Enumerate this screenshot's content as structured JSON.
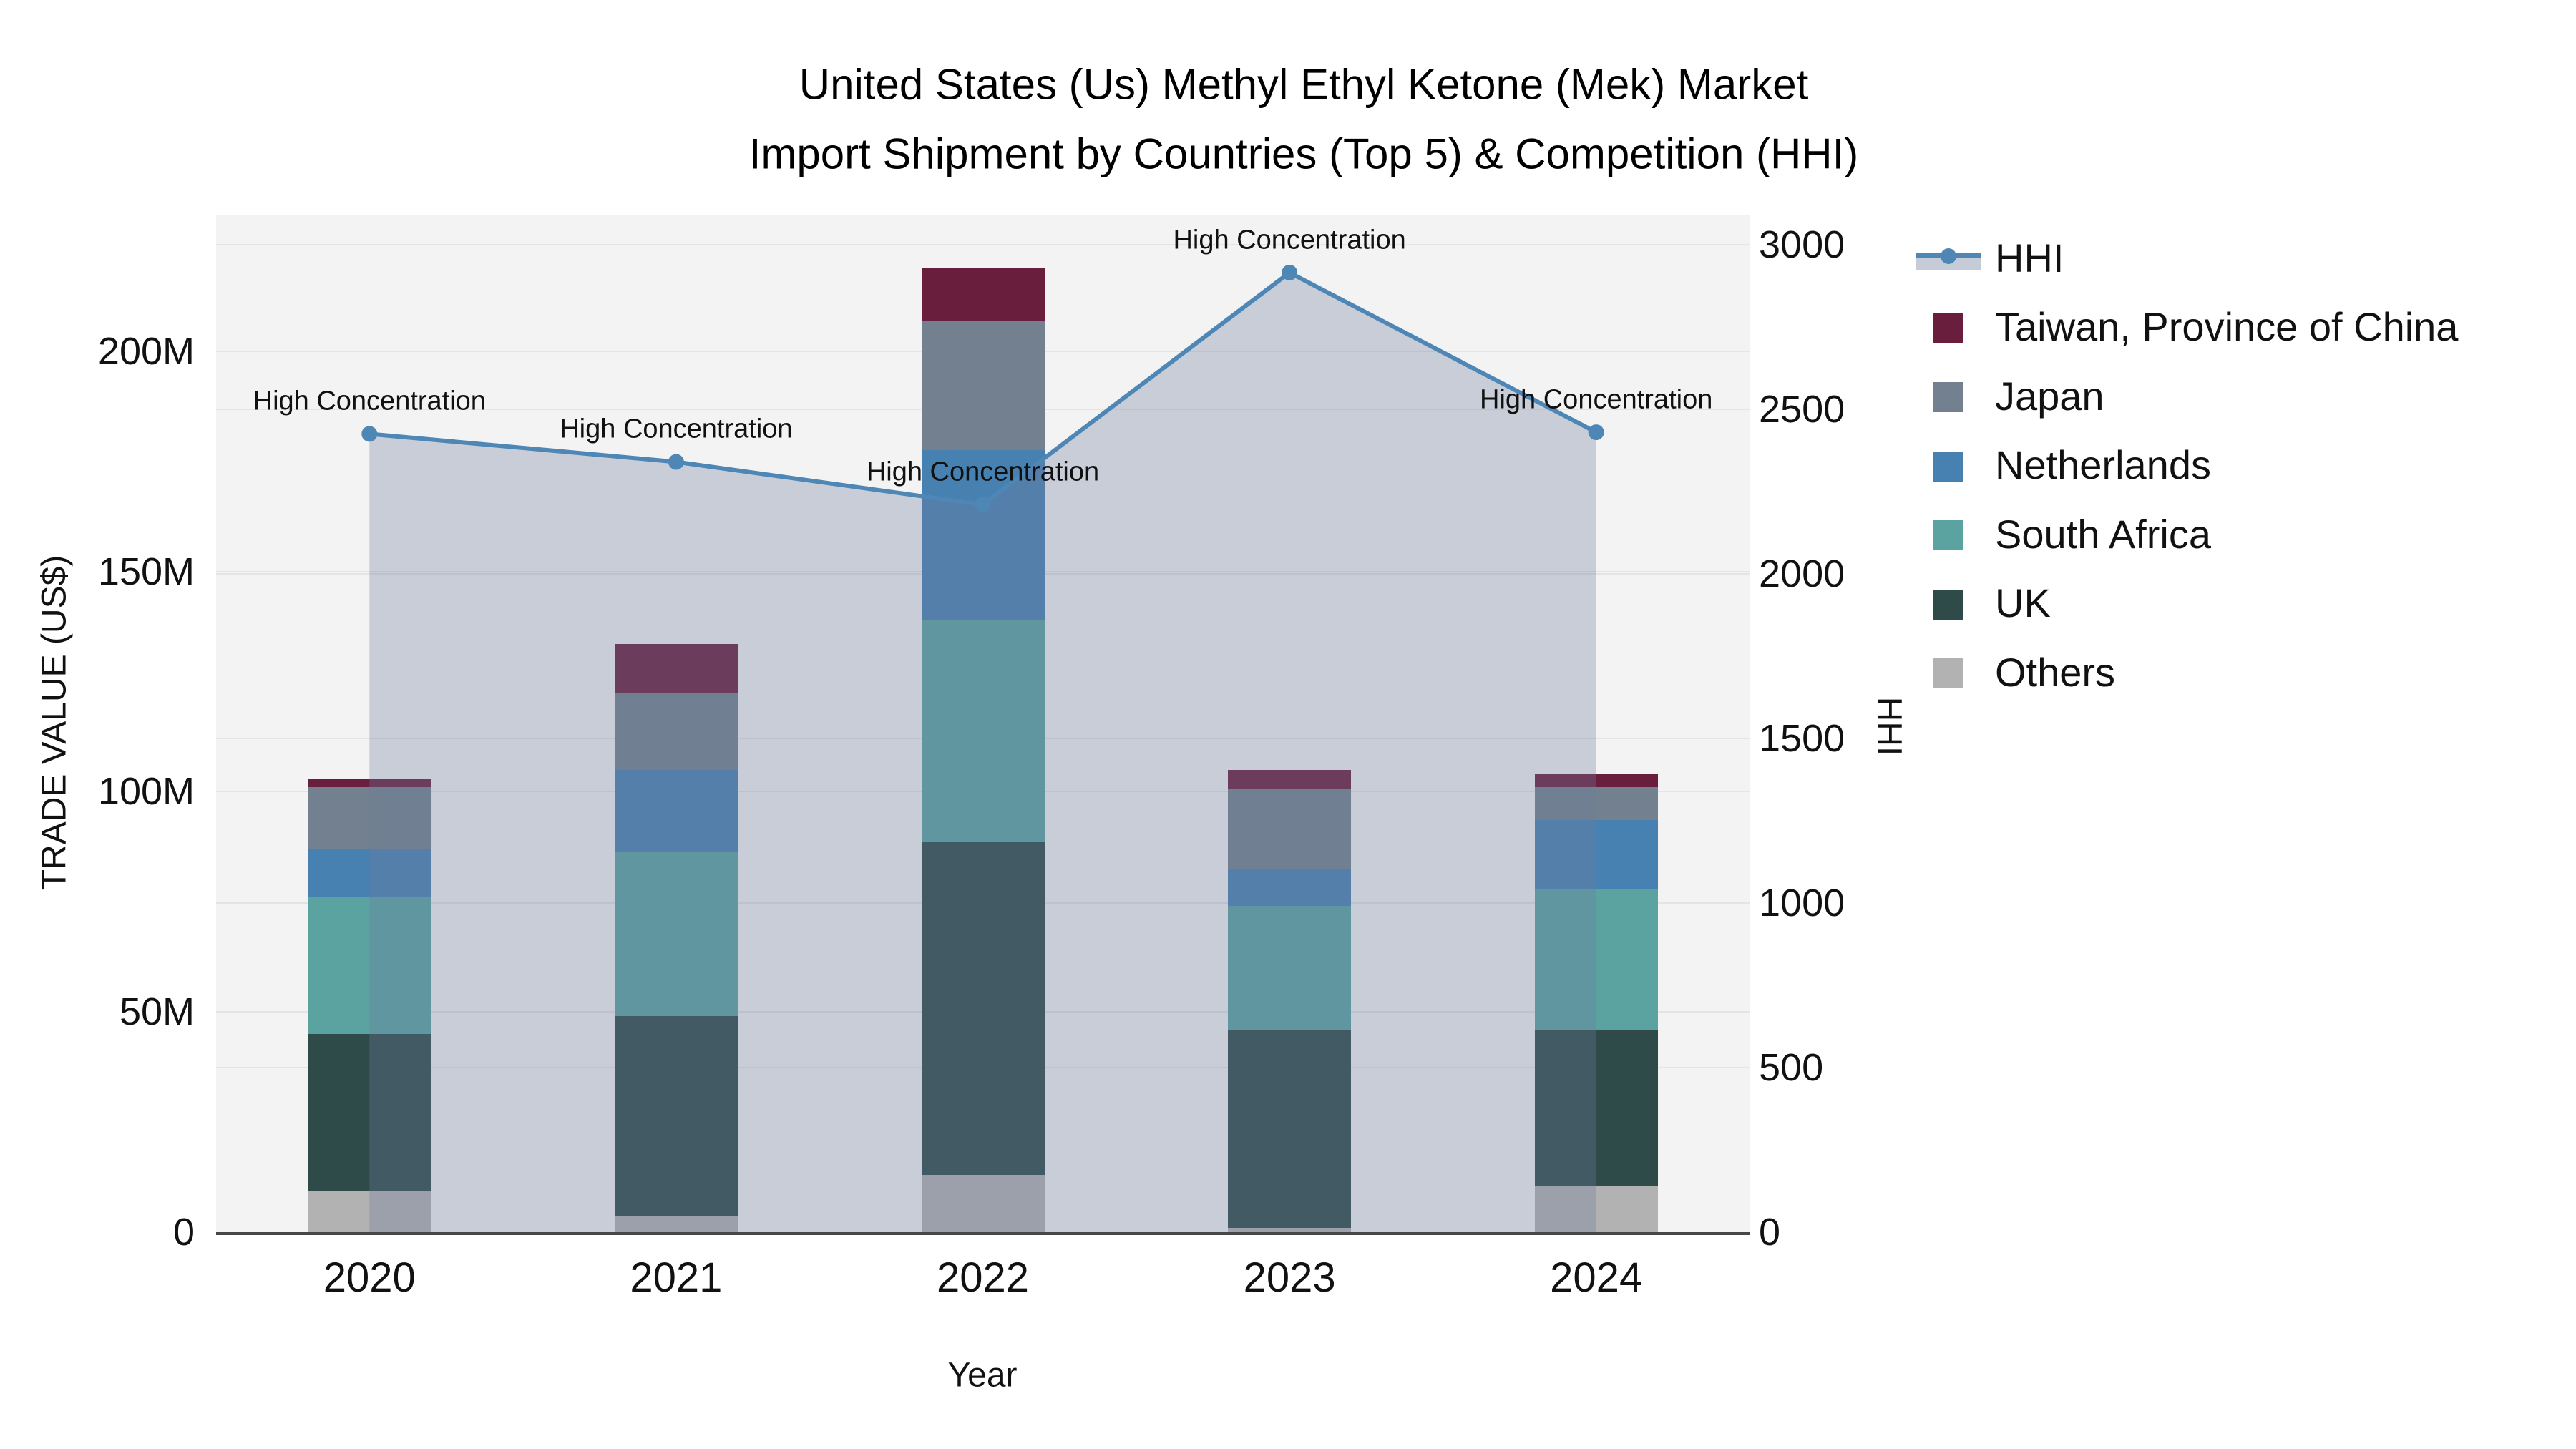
{
  "chart_data": {
    "type": "bar+line",
    "title_line1": "United States (Us) Methyl Ethyl Ketone (Mek) Market",
    "title_line2": "Import Shipment by Countries (Top 5) & Competition (HHI)",
    "xlabel": "Year",
    "ylabel_left": "TRADE VALUE (US$)",
    "ylabel_right": "HHI",
    "categories": [
      "2020",
      "2021",
      "2022",
      "2023",
      "2024"
    ],
    "values_unit": "million US$",
    "stack_order_bottom_to_top": [
      "Others",
      "UK",
      "South Africa",
      "Netherlands",
      "Japan",
      "Taiwan, Province of China"
    ],
    "series": [
      {
        "name": "Taiwan, Province of China",
        "color": "#6a1e3e",
        "values": [
          2,
          11,
          12,
          4.5,
          3
        ]
      },
      {
        "name": "Japan",
        "color": "#73808f",
        "values": [
          14,
          17.5,
          29.5,
          18,
          7.5
        ]
      },
      {
        "name": "Netherlands",
        "color": "#4781b2",
        "values": [
          11,
          18.5,
          38.5,
          8.5,
          15.5
        ]
      },
      {
        "name": "South Africa",
        "color": "#5ba3a1",
        "values": [
          31,
          37.5,
          50.5,
          28,
          32
        ]
      },
      {
        "name": "UK",
        "color": "#2e4b4a",
        "values": [
          35.5,
          45.5,
          75.5,
          45,
          35.5
        ]
      },
      {
        "name": "Others",
        "color": "#b2b2b2",
        "values": [
          9.5,
          3.5,
          13,
          1,
          10.5
        ]
      }
    ],
    "bar_totals": [
      103,
      133.5,
      219.5,
      105,
      104
    ],
    "hhi_line": {
      "name": "HHI",
      "color": "#4e86b5",
      "area_color": "rgba(110,125,155,0.32)",
      "values": [
        2425,
        2340,
        2210,
        2915,
        2430
      ],
      "point_annotation": "High Concentration"
    },
    "yticks_left": [
      {
        "label": "0",
        "value": 0
      },
      {
        "label": "50M",
        "value": 50
      },
      {
        "label": "100M",
        "value": 100
      },
      {
        "label": "150M",
        "value": 150
      },
      {
        "label": "200M",
        "value": 200
      }
    ],
    "ylim_left": [
      0,
      231
    ],
    "yticks_right": [
      {
        "label": "0",
        "value": 0
      },
      {
        "label": "500",
        "value": 500
      },
      {
        "label": "1000",
        "value": 1000
      },
      {
        "label": "1500",
        "value": 1500
      },
      {
        "label": "2000",
        "value": 2000
      },
      {
        "label": "2500",
        "value": 2500
      },
      {
        "label": "3000",
        "value": 3000
      }
    ],
    "ylim_right": [
      0,
      3091
    ],
    "grid": true,
    "plot_background": "#f3f3f3",
    "legend_position": "right",
    "legend_order": [
      "HHI",
      "Taiwan, Province of China",
      "Japan",
      "Netherlands",
      "South Africa",
      "UK",
      "Others"
    ]
  }
}
